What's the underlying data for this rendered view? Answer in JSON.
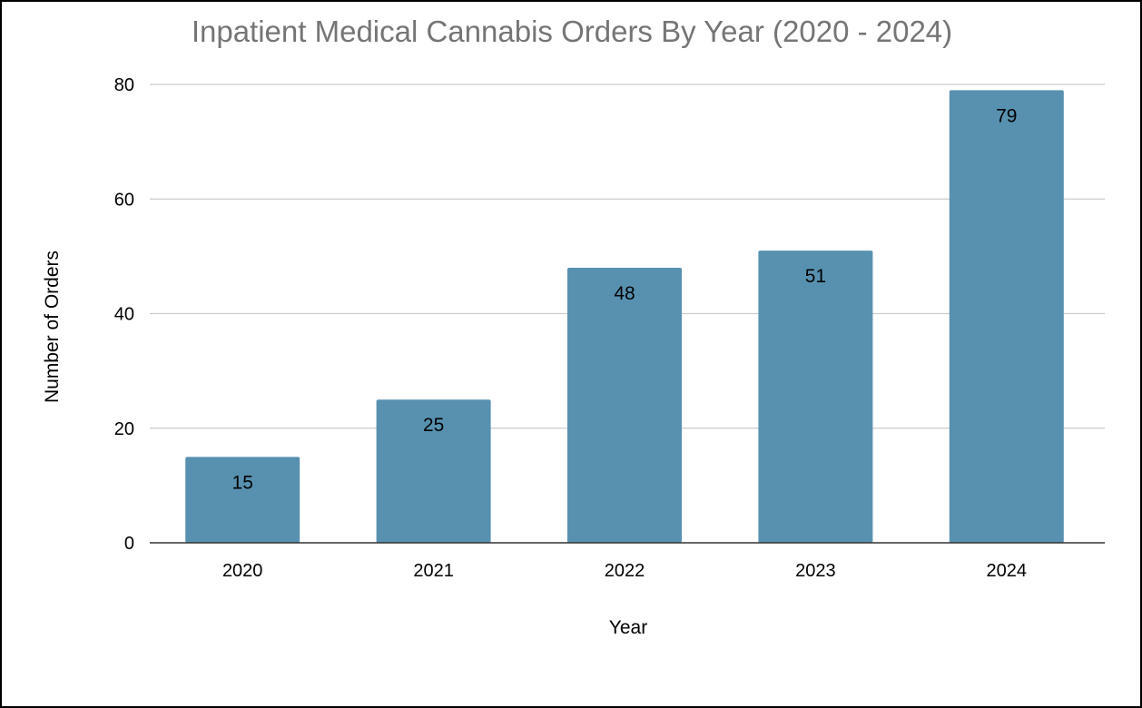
{
  "chart_data": {
    "type": "bar",
    "title": "Inpatient Medical Cannabis Orders By Year (2020 - 2024)",
    "xlabel": "Year",
    "ylabel": "Number of Orders",
    "categories": [
      "2020",
      "2021",
      "2022",
      "2023",
      "2024"
    ],
    "values": [
      15,
      25,
      48,
      51,
      79
    ],
    "data_labels": [
      "15",
      "25",
      "48",
      "51",
      "79"
    ],
    "yticks": [
      "0",
      "20",
      "40",
      "60",
      "80"
    ],
    "ylim": [
      0,
      80
    ],
    "grid": true,
    "legend": "none",
    "colors": {
      "bar": "#5891b0",
      "title": "#757575",
      "grid": "#cccccc",
      "axis": "#333333"
    }
  }
}
